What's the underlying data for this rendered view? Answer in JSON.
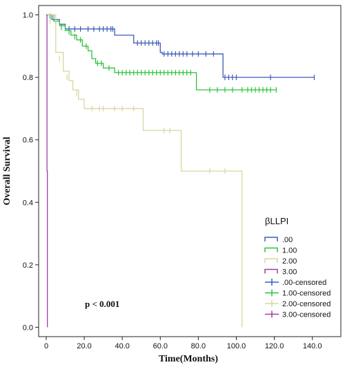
{
  "chart_data": {
    "type": "line",
    "title": "",
    "xlabel": "Time(Months)",
    "ylabel": "Overall Survival",
    "xlim": [
      -4,
      155
    ],
    "ylim": [
      -0.03,
      1.03
    ],
    "xticks": [
      0,
      20,
      40,
      60,
      80,
      100,
      120,
      140
    ],
    "xtick_labels": [
      "0",
      "20.0",
      "40.0",
      "60.0",
      "80.0",
      "100.0",
      "120.0",
      "140.0"
    ],
    "yticks": [
      0,
      0.2,
      0.4,
      0.6,
      0.8,
      1.0
    ],
    "ytick_labels": [
      "0.0",
      "0.2",
      "0.4",
      "0.6",
      "0.8",
      "1.0"
    ],
    "grid": false,
    "legend_title": "βLLPI",
    "legend_position": "right",
    "annotation": "p < 0.001",
    "series": [
      {
        "name": ".00",
        "color": "#3b5bb8",
        "steps": [
          [
            0,
            1.0
          ],
          [
            3,
            0.985
          ],
          [
            7,
            0.97
          ],
          [
            10,
            0.955
          ],
          [
            36,
            0.935
          ],
          [
            46,
            0.91
          ],
          [
            60,
            0.88
          ],
          [
            61,
            0.875
          ],
          [
            93,
            0.8
          ],
          [
            141,
            0.8
          ]
        ],
        "censored": [
          [
            2,
            0.995
          ],
          [
            5,
            0.98
          ],
          [
            12,
            0.955
          ],
          [
            15,
            0.955
          ],
          [
            18,
            0.955
          ],
          [
            22,
            0.955
          ],
          [
            25,
            0.955
          ],
          [
            28,
            0.955
          ],
          [
            30,
            0.955
          ],
          [
            32,
            0.955
          ],
          [
            34,
            0.955
          ],
          [
            35,
            0.955
          ],
          [
            48,
            0.91
          ],
          [
            50,
            0.91
          ],
          [
            52,
            0.91
          ],
          [
            54,
            0.91
          ],
          [
            56,
            0.91
          ],
          [
            58,
            0.91
          ],
          [
            59,
            0.91
          ],
          [
            62,
            0.875
          ],
          [
            64,
            0.875
          ],
          [
            66,
            0.875
          ],
          [
            68,
            0.875
          ],
          [
            70,
            0.875
          ],
          [
            72,
            0.875
          ],
          [
            74,
            0.875
          ],
          [
            77,
            0.875
          ],
          [
            80,
            0.875
          ],
          [
            84,
            0.875
          ],
          [
            88,
            0.875
          ],
          [
            94,
            0.8
          ],
          [
            96,
            0.8
          ],
          [
            98,
            0.8
          ],
          [
            100,
            0.8
          ],
          [
            118,
            0.8
          ],
          [
            141,
            0.8
          ]
        ]
      },
      {
        "name": "1.00",
        "color": "#2cc33a",
        "steps": [
          [
            0,
            1.0
          ],
          [
            4,
            0.98
          ],
          [
            7,
            0.965
          ],
          [
            10,
            0.95
          ],
          [
            13,
            0.935
          ],
          [
            16,
            0.92
          ],
          [
            19,
            0.9
          ],
          [
            22,
            0.885
          ],
          [
            24,
            0.86
          ],
          [
            26,
            0.845
          ],
          [
            30,
            0.83
          ],
          [
            36,
            0.815
          ],
          [
            79,
            0.76
          ],
          [
            121,
            0.76
          ]
        ],
        "censored": [
          [
            2,
            0.99
          ],
          [
            5,
            0.975
          ],
          [
            8,
            0.96
          ],
          [
            12,
            0.945
          ],
          [
            15,
            0.93
          ],
          [
            18,
            0.92
          ],
          [
            21,
            0.9
          ],
          [
            27,
            0.845
          ],
          [
            29,
            0.845
          ],
          [
            33,
            0.83
          ],
          [
            38,
            0.815
          ],
          [
            40,
            0.815
          ],
          [
            42,
            0.815
          ],
          [
            44,
            0.815
          ],
          [
            46,
            0.815
          ],
          [
            48,
            0.815
          ],
          [
            50,
            0.815
          ],
          [
            52,
            0.815
          ],
          [
            54,
            0.815
          ],
          [
            56,
            0.815
          ],
          [
            58,
            0.815
          ],
          [
            60,
            0.815
          ],
          [
            62,
            0.815
          ],
          [
            64,
            0.815
          ],
          [
            66,
            0.815
          ],
          [
            68,
            0.815
          ],
          [
            70,
            0.815
          ],
          [
            72,
            0.815
          ],
          [
            74,
            0.815
          ],
          [
            76,
            0.815
          ],
          [
            86,
            0.76
          ],
          [
            90,
            0.76
          ],
          [
            94,
            0.76
          ],
          [
            98,
            0.76
          ],
          [
            103,
            0.76
          ],
          [
            106,
            0.76
          ],
          [
            108,
            0.76
          ],
          [
            110,
            0.76
          ],
          [
            112,
            0.76
          ],
          [
            114,
            0.76
          ],
          [
            116,
            0.76
          ],
          [
            118,
            0.76
          ],
          [
            121,
            0.76
          ]
        ]
      },
      {
        "name": "2.00",
        "color": "#d9d6a0",
        "steps": [
          [
            0,
            1.0
          ],
          [
            5,
            0.88
          ],
          [
            9,
            0.82
          ],
          [
            12,
            0.79
          ],
          [
            14,
            0.76
          ],
          [
            17,
            0.73
          ],
          [
            20,
            0.7
          ],
          [
            51,
            0.63
          ],
          [
            71,
            0.5
          ],
          [
            103,
            0.0
          ]
        ],
        "censored": [
          [
            2,
            0.98
          ],
          [
            7,
            0.86
          ],
          [
            11,
            0.8
          ],
          [
            16,
            0.75
          ],
          [
            24,
            0.7
          ],
          [
            28,
            0.7
          ],
          [
            30,
            0.7
          ],
          [
            36,
            0.7
          ],
          [
            40,
            0.7
          ],
          [
            46,
            0.7
          ],
          [
            62,
            0.63
          ],
          [
            65,
            0.63
          ],
          [
            86,
            0.5
          ],
          [
            94,
            0.5
          ]
        ]
      },
      {
        "name": "3.00",
        "color": "#9b3fa6",
        "steps": [
          [
            0,
            1.0
          ],
          [
            0.4,
            0.5
          ],
          [
            0.6,
            0.0
          ]
        ],
        "censored": []
      }
    ],
    "legend": [
      {
        "label": ".00",
        "color": "#3b5bb8",
        "kind": "line"
      },
      {
        "label": "1.00",
        "color": "#2cc33a",
        "kind": "line"
      },
      {
        "label": "2.00",
        "color": "#d9d6a0",
        "kind": "line"
      },
      {
        "label": "3.00",
        "color": "#9b3fa6",
        "kind": "line"
      },
      {
        "label": ".00-censored",
        "color": "#3b5bb8",
        "kind": "cross"
      },
      {
        "label": "1.00-censored",
        "color": "#2cc33a",
        "kind": "cross"
      },
      {
        "label": "2.00-censored",
        "color": "#d9d6a0",
        "kind": "cross"
      },
      {
        "label": "3.00-censored",
        "color": "#9b3fa6",
        "kind": "cross"
      }
    ]
  }
}
